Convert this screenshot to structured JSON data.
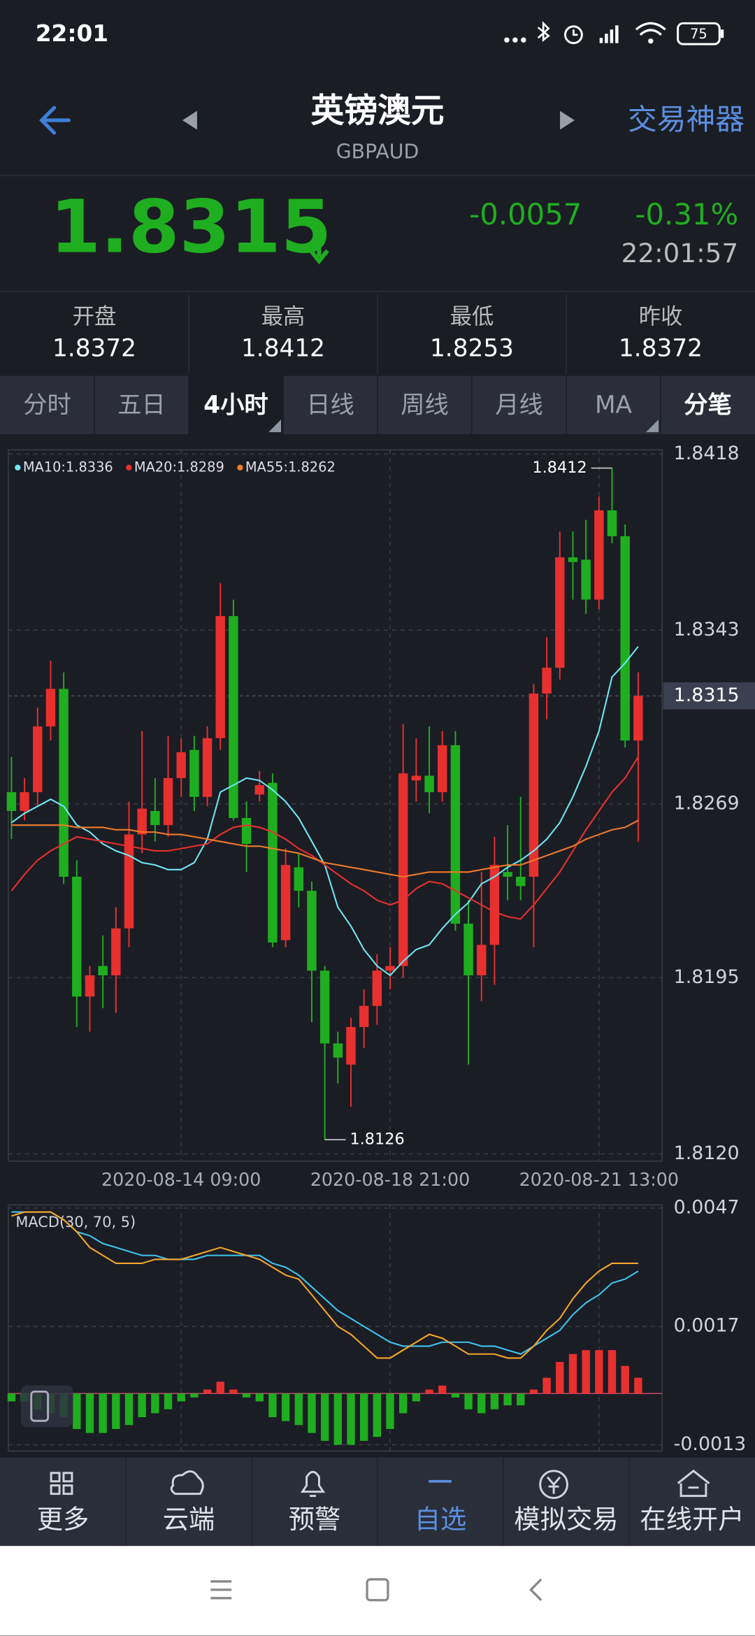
{
  "status_bar": {
    "time": "22:01",
    "battery": "75"
  },
  "header": {
    "title": "英镑澳元",
    "subtitle": "GBPAUD",
    "action": "交易神器"
  },
  "quote": {
    "price": "1.8315",
    "change": "-0.0057",
    "change_pct": "-0.31%",
    "time": "22:01:57"
  },
  "stats": [
    {
      "label": "开盘",
      "value": "1.8372"
    },
    {
      "label": "最高",
      "value": "1.8412"
    },
    {
      "label": "最低",
      "value": "1.8253"
    },
    {
      "label": "昨收",
      "value": "1.8372"
    }
  ],
  "tabs": [
    "分时",
    "五日",
    "4小时",
    "日线",
    "周线",
    "月线",
    "MA",
    "分笔"
  ],
  "active_tab": 2,
  "chart_data": [
    {
      "type": "candlestick",
      "up_color": "#e8302e",
      "down_color": "#1fae1f",
      "categories": [
        null,
        null,
        null,
        null,
        null,
        null,
        null,
        null,
        null,
        null,
        null,
        null,
        null,
        "2020-08-14 09:00",
        null,
        null,
        null,
        null,
        null,
        null,
        null,
        null,
        null,
        null,
        null,
        null,
        null,
        null,
        null,
        "2020-08-18 21:00",
        null,
        null,
        null,
        null,
        null,
        null,
        null,
        null,
        null,
        null,
        null,
        null,
        null,
        null,
        null,
        "2020-08-21 13:00",
        null,
        null,
        null
      ],
      "open": [
        1.8274,
        1.8266,
        1.8274,
        1.8302,
        1.8318,
        1.8238,
        1.8187,
        1.82,
        1.8196,
        1.8216,
        1.8256,
        1.8266,
        1.826,
        1.828,
        1.8292,
        1.8272,
        1.8297,
        1.8349,
        1.8263,
        1.8273,
        1.8278,
        1.8211,
        1.8242,
        1.8232,
        1.8198,
        1.8167,
        1.8158,
        1.8174,
        1.8183,
        1.8198,
        1.82,
        1.8279,
        1.8281,
        1.8274,
        1.8294,
        1.8218,
        1.8196,
        1.8209,
        1.824,
        1.8238,
        1.8238,
        1.8316,
        1.8327,
        1.8374,
        1.8373,
        1.8356,
        1.8394,
        1.8383,
        1.8296
      ],
      "high": [
        1.8289,
        1.828,
        1.831,
        1.833,
        1.8325,
        1.8245,
        1.82,
        1.8213,
        1.8225,
        1.827,
        1.83,
        1.828,
        1.8298,
        1.8297,
        1.8298,
        1.8302,
        1.8363,
        1.8356,
        1.827,
        1.8283,
        1.8282,
        1.825,
        1.8248,
        1.8236,
        1.82,
        1.8172,
        1.8178,
        1.819,
        1.8205,
        1.8208,
        1.8303,
        1.8297,
        1.8302,
        1.83,
        1.83,
        1.8228,
        1.824,
        1.8255,
        1.826,
        1.8272,
        1.832,
        1.834,
        1.8385,
        1.8385,
        1.839,
        1.84,
        1.8412,
        1.8388,
        1.8325
      ],
      "low": [
        1.8254,
        1.8262,
        1.8268,
        1.8296,
        1.8235,
        1.8174,
        1.8172,
        1.8182,
        1.818,
        1.8208,
        1.8248,
        1.8253,
        1.8255,
        1.8272,
        1.8266,
        1.8268,
        1.8292,
        1.8262,
        1.824,
        1.827,
        1.8208,
        1.8208,
        1.8225,
        1.8176,
        1.8126,
        1.815,
        1.814,
        1.8165,
        1.8175,
        1.819,
        1.8195,
        1.827,
        1.8265,
        1.827,
        1.8215,
        1.8158,
        1.8185,
        1.8192,
        1.8228,
        1.8228,
        1.8208,
        1.8305,
        1.8322,
        1.8356,
        1.835,
        1.8352,
        1.838,
        1.8293,
        1.8253
      ],
      "close": [
        1.8266,
        1.8274,
        1.8302,
        1.8318,
        1.8238,
        1.8187,
        1.8196,
        1.8196,
        1.8216,
        1.8256,
        1.8267,
        1.826,
        1.828,
        1.8291,
        1.8272,
        1.8297,
        1.8349,
        1.8263,
        1.8252,
        1.8277,
        1.821,
        1.8243,
        1.8232,
        1.8198,
        1.8167,
        1.8161,
        1.8174,
        1.8183,
        1.8198,
        1.82,
        1.8282,
        1.8281,
        1.8274,
        1.8294,
        1.8218,
        1.8196,
        1.8209,
        1.8243,
        1.8238,
        1.8234,
        1.8316,
        1.8327,
        1.8374,
        1.8372,
        1.8356,
        1.8394,
        1.8383,
        1.8296,
        1.8315
      ],
      "series": [
        {
          "name": "MA10",
          "color": "#6fe6f2",
          "values": [
            1.8261,
            1.8265,
            1.8268,
            1.8271,
            1.8268,
            1.826,
            1.8257,
            1.8252,
            1.8249,
            1.8247,
            1.8244,
            1.8243,
            1.8241,
            1.8241,
            1.8244,
            1.8254,
            1.8274,
            1.8277,
            1.828,
            1.8279,
            1.8275,
            1.827,
            1.8263,
            1.8253,
            1.8243,
            1.8225,
            1.8217,
            1.8207,
            1.82,
            1.8196,
            1.8202,
            1.8207,
            1.8209,
            1.8216,
            1.8222,
            1.8227,
            1.8235,
            1.8238,
            1.8242,
            1.8245,
            1.8249,
            1.8254,
            1.8261,
            1.8272,
            1.8285,
            1.83,
            1.8323,
            1.8329,
            1.8336
          ]
        },
        {
          "name": "MA20",
          "color": "#e8302e",
          "values": [
            1.8232,
            1.8239,
            1.8245,
            1.8249,
            1.8252,
            1.8255,
            1.8254,
            1.8253,
            1.8252,
            1.8251,
            1.825,
            1.8249,
            1.8249,
            1.825,
            1.8251,
            1.8252,
            1.8256,
            1.8259,
            1.826,
            1.8259,
            1.8257,
            1.8254,
            1.825,
            1.8247,
            1.8243,
            1.8239,
            1.8235,
            1.8232,
            1.8228,
            1.8226,
            1.8228,
            1.8233,
            1.8236,
            1.8235,
            1.8232,
            1.8229,
            1.8226,
            1.8223,
            1.8221,
            1.822,
            1.8226,
            1.8233,
            1.824,
            1.8249,
            1.8258,
            1.8266,
            1.8274,
            1.828,
            1.8289
          ]
        },
        {
          "name": "MA55",
          "color": "#f07a2a",
          "values": [
            1.826,
            1.826,
            1.826,
            1.826,
            1.826,
            1.8259,
            1.8259,
            1.8259,
            1.8258,
            1.8258,
            1.8257,
            1.8257,
            1.8256,
            1.8256,
            1.8255,
            1.8254,
            1.8253,
            1.8252,
            1.8251,
            1.8251,
            1.825,
            1.8249,
            1.8248,
            1.8246,
            1.8244,
            1.8243,
            1.8242,
            1.8241,
            1.824,
            1.8239,
            1.8238,
            1.8239,
            1.824,
            1.824,
            1.824,
            1.824,
            1.8241,
            1.8242,
            1.8243,
            1.8243,
            1.8245,
            1.8247,
            1.8249,
            1.8251,
            1.8254,
            1.8256,
            1.8258,
            1.8259,
            1.8262
          ]
        }
      ],
      "legend": [
        "MA10:1.8336",
        "MA20:1.8289",
        "MA55:1.8262"
      ],
      "ylim": [
        1.812,
        1.8418
      ],
      "yticks": [
        1.8418,
        1.8343,
        1.8269,
        1.8195,
        {
          "value": 1.812,
          "label": "1.8120"
        }
      ],
      "grid": true,
      "max_label": 1.8412,
      "min_label": 1.8126,
      "last_label": 1.8315
    },
    {
      "type": "macd",
      "title": "MACD(30, 70, 5)",
      "histogram": {
        "up_color": "#e8302e",
        "down_color": "#1fae1f",
        "values": [
          -0.0002,
          -0.0002,
          -0.0004,
          -0.0005,
          -0.0006,
          -0.0009,
          -0.001,
          -0.001,
          -0.0009,
          -0.0008,
          -0.0006,
          -0.0005,
          -0.0004,
          -0.0002,
          -0.0001,
          0.0001,
          0.0003,
          0.0001,
          -0.0001,
          -0.0002,
          -0.0006,
          -0.0007,
          -0.0008,
          -0.001,
          -0.0012,
          -0.0013,
          -0.0013,
          -0.0012,
          -0.0011,
          -0.0009,
          -0.0005,
          -0.0002,
          0.0001,
          0.0002,
          -0.0001,
          -0.0004,
          -0.0005,
          -0.0004,
          -0.0003,
          -0.0003,
          0.0001,
          0.0004,
          0.0008,
          0.001,
          0.0011,
          0.0011,
          0.0011,
          0.0007,
          0.0004
        ]
      },
      "series": [
        {
          "color": "#3ec4ec",
          "values": [
            0.0046,
            0.0046,
            0.0046,
            0.0046,
            0.0044,
            0.0041,
            0.004,
            0.0038,
            0.0037,
            0.0036,
            0.0035,
            0.0035,
            0.0034,
            0.0034,
            0.0034,
            0.0035,
            0.0035,
            0.0035,
            0.0035,
            0.0035,
            0.0033,
            0.0032,
            0.003,
            0.0027,
            0.0024,
            0.0021,
            0.0019,
            0.0017,
            0.0015,
            0.0013,
            0.0012,
            0.0012,
            0.0012,
            0.0013,
            0.0013,
            0.0013,
            0.0012,
            0.0012,
            0.0011,
            0.001,
            0.0012,
            0.0014,
            0.0016,
            0.002,
            0.0023,
            0.0025,
            0.0028,
            0.0029,
            0.0031
          ]
        },
        {
          "color": "#f4a62a",
          "values": [
            0.0045,
            0.0046,
            0.0046,
            0.0046,
            0.0044,
            0.0041,
            0.0037,
            0.0035,
            0.0033,
            0.0033,
            0.0033,
            0.0034,
            0.0034,
            0.0034,
            0.0035,
            0.0036,
            0.0037,
            0.0036,
            0.0035,
            0.0034,
            0.0032,
            0.003,
            0.0029,
            0.0025,
            0.0021,
            0.0017,
            0.0015,
            0.0012,
            0.0009,
            0.0009,
            0.0011,
            0.0013,
            0.0015,
            0.0014,
            0.0012,
            0.001,
            0.001,
            0.001,
            0.0009,
            0.0009,
            0.0012,
            0.0016,
            0.0019,
            0.0024,
            0.0028,
            0.0031,
            0.0033,
            0.0033,
            0.0033
          ]
        }
      ],
      "ylim": [
        -0.0013,
        0.0047
      ],
      "yticks": [
        0.0047,
        0.0017,
        -0.0013
      ],
      "grid": true
    }
  ],
  "nav": [
    "更多",
    "云端",
    "预警",
    "自选",
    "模拟交易",
    "在线开户"
  ],
  "active_nav": 3
}
